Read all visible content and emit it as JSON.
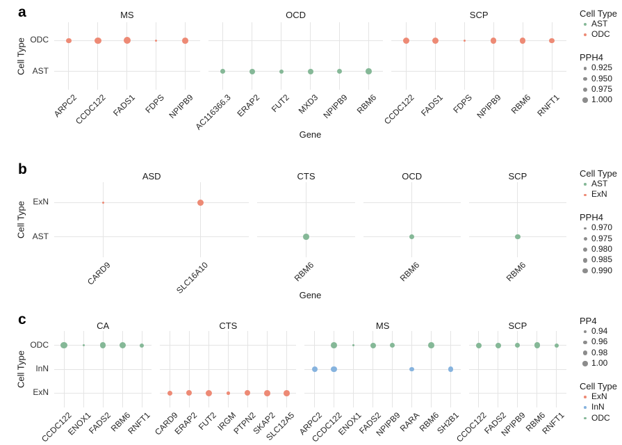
{
  "figure_name": "colocalization-dot-plots",
  "colors": {
    "salmon": "#ED8A75",
    "green": "#85B897",
    "blue": "#86B3DE",
    "legend_gray": "#8C8C8C",
    "gridline": "#E4E4E4"
  },
  "chart_data": {
    "type": "scatter",
    "description": "Three faceted dot plots (a, b, c) of Gene vs Cell Type; dot size encodes colocalization posterior probability (PPH4/PP4), dot color encodes cell type.",
    "panels": [
      {
        "letter": "a",
        "y_axis_title": "Cell Type",
        "x_axis_title": "Gene",
        "rows": [
          "ODC",
          "AST"
        ],
        "cell_colors": {
          "ODC": "#ED8A75",
          "AST": "#85B897"
        },
        "facets": [
          {
            "label": "MS",
            "genes": [
              "ARPC2",
              "CCDC122",
              "FADS1",
              "FDPS",
              "NPIPB9"
            ],
            "points": [
              {
                "gene": "ARPC2",
                "cell_type": "ODC",
                "pph4": 0.96,
                "r": 3.7
              },
              {
                "gene": "CCDC122",
                "cell_type": "ODC",
                "pph4": 0.99,
                "r": 4.7
              },
              {
                "gene": "FADS1",
                "cell_type": "ODC",
                "pph4": 1.0,
                "r": 5.0
              },
              {
                "gene": "FDPS",
                "cell_type": "ODC",
                "pph4": 0.92,
                "r": 1.5
              },
              {
                "gene": "NPIPB9",
                "cell_type": "ODC",
                "pph4": 0.99,
                "r": 4.4
              }
            ]
          },
          {
            "label": "OCD",
            "genes": [
              "AC116366.3",
              "ERAP2",
              "FUT2",
              "MXD3",
              "NPIPB9",
              "RBM6"
            ],
            "points": [
              {
                "gene": "AC116366.3",
                "cell_type": "AST",
                "pph4": 0.95,
                "r": 3.4
              },
              {
                "gene": "ERAP2",
                "cell_type": "AST",
                "pph4": 0.97,
                "r": 4.0
              },
              {
                "gene": "FUT2",
                "cell_type": "AST",
                "pph4": 0.94,
                "r": 3.0
              },
              {
                "gene": "MXD3",
                "cell_type": "AST",
                "pph4": 0.97,
                "r": 4.0
              },
              {
                "gene": "NPIPB9",
                "cell_type": "AST",
                "pph4": 0.95,
                "r": 3.5
              },
              {
                "gene": "RBM6",
                "cell_type": "AST",
                "pph4": 0.99,
                "r": 4.4
              }
            ]
          },
          {
            "label": "SCP",
            "genes": [
              "CCDC122",
              "FADS1",
              "FDPS",
              "NPIPB9",
              "RBM6",
              "RNFT1"
            ],
            "points": [
              {
                "gene": "CCDC122",
                "cell_type": "ODC",
                "pph4": 0.99,
                "r": 4.7
              },
              {
                "gene": "FADS1",
                "cell_type": "ODC",
                "pph4": 0.99,
                "r": 4.7
              },
              {
                "gene": "FDPS",
                "cell_type": "ODC",
                "pph4": 0.92,
                "r": 1.7
              },
              {
                "gene": "NPIPB9",
                "cell_type": "ODC",
                "pph4": 0.98,
                "r": 4.3
              },
              {
                "gene": "RBM6",
                "cell_type": "ODC",
                "pph4": 0.98,
                "r": 4.3
              },
              {
                "gene": "RNFT1",
                "cell_type": "ODC",
                "pph4": 0.96,
                "r": 3.7
              }
            ]
          }
        ],
        "legend": {
          "sections": [
            {
              "kind": "color",
              "title": "Cell Type",
              "items": [
                {
                  "label": "AST",
                  "color": "#85B897",
                  "r": 2.0
                },
                {
                  "label": "ODC",
                  "color": "#ED8A75",
                  "r": 2.0
                }
              ]
            },
            {
              "kind": "size",
              "title": "PPH4",
              "items": [
                {
                  "label": "0.925",
                  "color": "#8C8C8C",
                  "r": 2.3
                },
                {
                  "label": "0.950",
                  "color": "#8C8C8C",
                  "r": 2.8
                },
                {
                  "label": "0.975",
                  "color": "#8C8C8C",
                  "r": 3.3
                },
                {
                  "label": "1.000",
                  "color": "#8C8C8C",
                  "r": 3.8
                }
              ]
            }
          ]
        }
      },
      {
        "letter": "b",
        "y_axis_title": "Cell Type",
        "x_axis_title": "Gene",
        "rows": [
          "ExN",
          "AST"
        ],
        "cell_colors": {
          "ExN": "#ED8A75",
          "AST": "#85B897"
        },
        "facets": [
          {
            "label": "ASD",
            "genes": [
              "CARD9",
              "SLC16A10"
            ],
            "points": [
              {
                "gene": "CARD9",
                "cell_type": "ExN",
                "pph4": 0.97,
                "r": 1.6
              },
              {
                "gene": "SLC16A10",
                "cell_type": "ExN",
                "pph4": 0.99,
                "r": 4.6
              }
            ]
          },
          {
            "label": "CTS",
            "genes": [
              "RBM6"
            ],
            "points": [
              {
                "gene": "RBM6",
                "cell_type": "AST",
                "pph4": 0.985,
                "r": 4.3
              }
            ]
          },
          {
            "label": "OCD",
            "genes": [
              "RBM6"
            ],
            "points": [
              {
                "gene": "RBM6",
                "cell_type": "AST",
                "pph4": 0.98,
                "r": 3.8
              }
            ]
          },
          {
            "label": "SCP",
            "genes": [
              "RBM6"
            ],
            "points": [
              {
                "gene": "RBM6",
                "cell_type": "AST",
                "pph4": 0.98,
                "r": 3.8
              }
            ]
          }
        ],
        "legend": {
          "sections": [
            {
              "kind": "color",
              "title": "Cell Type",
              "items": [
                {
                  "label": "AST",
                  "color": "#85B897",
                  "r": 1.8
                },
                {
                  "label": "ExN",
                  "color": "#ED8A75",
                  "r": 1.8
                }
              ]
            },
            {
              "kind": "size",
              "title": "PPH4",
              "items": [
                {
                  "label": "0.970",
                  "color": "#8C8C8C",
                  "r": 1.7
                },
                {
                  "label": "0.975",
                  "color": "#8C8C8C",
                  "r": 2.5
                },
                {
                  "label": "0.980",
                  "color": "#8C8C8C",
                  "r": 3.0
                },
                {
                  "label": "0.985",
                  "color": "#8C8C8C",
                  "r": 3.4
                },
                {
                  "label": "0.990",
                  "color": "#8C8C8C",
                  "r": 3.7
                }
              ]
            }
          ]
        }
      },
      {
        "letter": "c",
        "y_axis_title": "Cell Type",
        "x_axis_title": "",
        "rows": [
          "ODC",
          "InN",
          "ExN"
        ],
        "cell_colors": {
          "ODC": "#85B897",
          "InN": "#86B3DE",
          "ExN": "#ED8A75"
        },
        "facets": [
          {
            "label": "CA",
            "genes": [
              "CCDC122",
              "ENOX1",
              "FADS2",
              "RBM6",
              "RNFT1"
            ],
            "points": [
              {
                "gene": "CCDC122",
                "cell_type": "ODC",
                "pph4": 1.0,
                "r": 4.8
              },
              {
                "gene": "ENOX1",
                "cell_type": "ODC",
                "pph4": 0.94,
                "r": 1.5
              },
              {
                "gene": "FADS2",
                "cell_type": "ODC",
                "pph4": 0.99,
                "r": 4.3
              },
              {
                "gene": "RBM6",
                "cell_type": "ODC",
                "pph4": 1.0,
                "r": 4.6
              },
              {
                "gene": "RNFT1",
                "cell_type": "ODC",
                "pph4": 0.96,
                "r": 3.0
              }
            ]
          },
          {
            "label": "CTS",
            "genes": [
              "CARD9",
              "ERAP2",
              "FUT2",
              "IRGM",
              "PTPN2",
              "SKAP2",
              "SLC12A5"
            ],
            "points": [
              {
                "gene": "CARD9",
                "cell_type": "ExN",
                "pph4": 0.97,
                "r": 3.7
              },
              {
                "gene": "ERAP2",
                "cell_type": "ExN",
                "pph4": 0.98,
                "r": 4.0
              },
              {
                "gene": "FUT2",
                "cell_type": "ExN",
                "pph4": 0.99,
                "r": 4.5
              },
              {
                "gene": "IRGM",
                "cell_type": "ExN",
                "pph4": 0.95,
                "r": 2.3
              },
              {
                "gene": "PTPN2",
                "cell_type": "ExN",
                "pph4": 0.98,
                "r": 4.0
              },
              {
                "gene": "SKAP2",
                "cell_type": "ExN",
                "pph4": 0.99,
                "r": 4.4
              },
              {
                "gene": "SLC12A5",
                "cell_type": "ExN",
                "pph4": 0.99,
                "r": 4.4
              }
            ]
          },
          {
            "label": "MS",
            "genes": [
              "ARPC2",
              "CCDC122",
              "ENOX1",
              "FADS2",
              "NPIPB9",
              "RARA",
              "RBM6",
              "SH2B1"
            ],
            "points": [
              {
                "gene": "ARPC2",
                "cell_type": "InN",
                "pph4": 0.98,
                "r": 4.0
              },
              {
                "gene": "CCDC122",
                "cell_type": "ODC",
                "pph4": 0.99,
                "r": 4.4
              },
              {
                "gene": "CCDC122",
                "cell_type": "InN",
                "pph4": 0.99,
                "r": 4.4
              },
              {
                "gene": "ENOX1",
                "cell_type": "ODC",
                "pph4": 0.94,
                "r": 1.4
              },
              {
                "gene": "FADS2",
                "cell_type": "ODC",
                "pph4": 0.98,
                "r": 4.0
              },
              {
                "gene": "NPIPB9",
                "cell_type": "ODC",
                "pph4": 0.97,
                "r": 3.8
              },
              {
                "gene": "RARA",
                "cell_type": "InN",
                "pph4": 0.96,
                "r": 3.4
              },
              {
                "gene": "RBM6",
                "cell_type": "ODC",
                "pph4": 0.99,
                "r": 4.4
              },
              {
                "gene": "SH2B1",
                "cell_type": "InN",
                "pph4": 0.97,
                "r": 3.7
              }
            ]
          },
          {
            "label": "SCP",
            "genes": [
              "CCDC122",
              "FADS2",
              "NPIPB9",
              "RBM6",
              "RNFT1"
            ],
            "points": [
              {
                "gene": "CCDC122",
                "cell_type": "ODC",
                "pph4": 0.98,
                "r": 4.0
              },
              {
                "gene": "FADS2",
                "cell_type": "ODC",
                "pph4": 0.97,
                "r": 3.9
              },
              {
                "gene": "NPIPB9",
                "cell_type": "ODC",
                "pph4": 0.96,
                "r": 3.5
              },
              {
                "gene": "RBM6",
                "cell_type": "ODC",
                "pph4": 0.98,
                "r": 4.2
              },
              {
                "gene": "RNFT1",
                "cell_type": "ODC",
                "pph4": 0.95,
                "r": 3.0
              }
            ]
          }
        ],
        "legend": {
          "sections": [
            {
              "kind": "size",
              "title": "PP4",
              "items": [
                {
                  "label": "0.94",
                  "color": "#8C8C8C",
                  "r": 2.3
                },
                {
                  "label": "0.96",
                  "color": "#8C8C8C",
                  "r": 2.8
                },
                {
                  "label": "0.98",
                  "color": "#8C8C8C",
                  "r": 3.3
                },
                {
                  "label": "1.00",
                  "color": "#8C8C8C",
                  "r": 3.7
                }
              ]
            },
            {
              "kind": "color",
              "title": "Cell Type",
              "items": [
                {
                  "label": "ExN",
                  "color": "#ED8A75",
                  "r": 1.8
                },
                {
                  "label": "InN",
                  "color": "#86B3DE",
                  "r": 1.8
                },
                {
                  "label": "ODC",
                  "color": "#85B897",
                  "r": 1.8
                }
              ]
            }
          ]
        }
      }
    ]
  }
}
